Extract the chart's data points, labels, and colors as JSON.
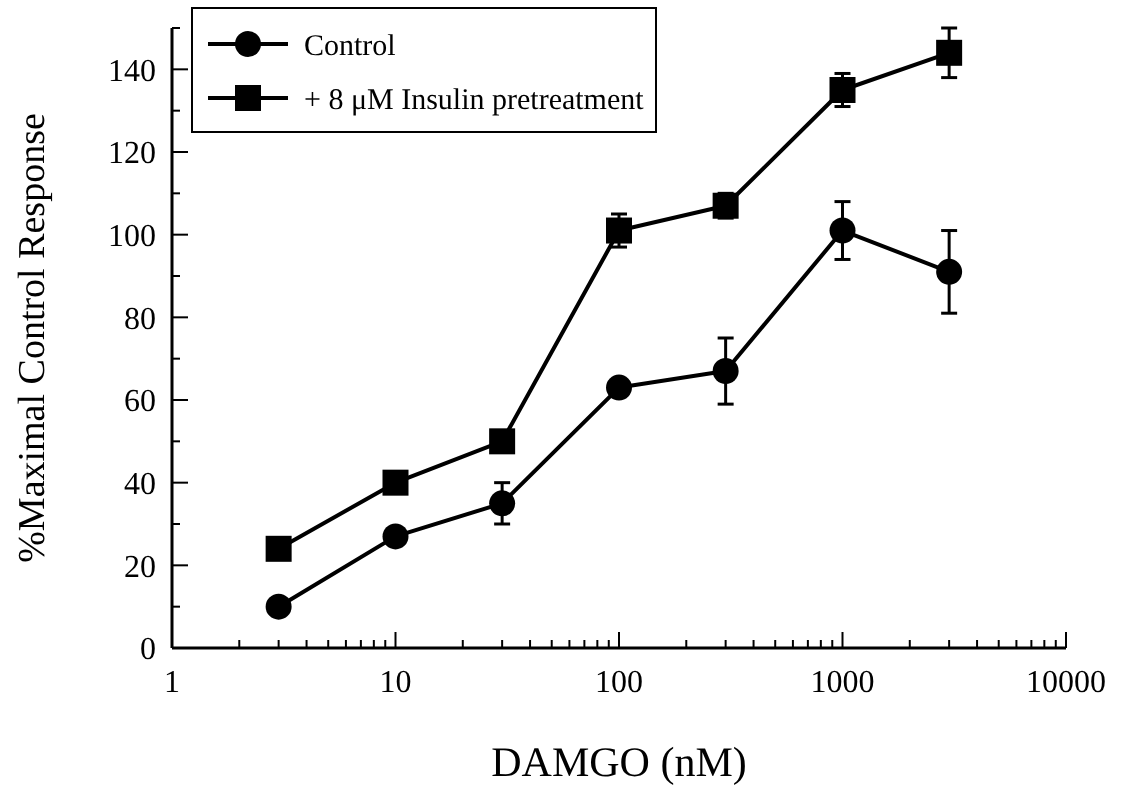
{
  "chart_data": {
    "type": "line",
    "xlabel": "DAMGO (nM)",
    "ylabel": "%Maximal Control Response",
    "log": "x",
    "xlim": [
      1,
      10000
    ],
    "ylim": [
      0,
      150
    ],
    "xticks": [
      1,
      {
        "value": 2,
        "label": null
      },
      {
        "value": 3,
        "label": null
      },
      {
        "value": 4,
        "label": null
      },
      {
        "value": 5,
        "label": null
      },
      {
        "value": 6,
        "label": null
      },
      {
        "value": 7,
        "label": null
      },
      {
        "value": 8,
        "label": null
      },
      {
        "value": 9,
        "label": null
      },
      10,
      {
        "value": 20,
        "label": null
      },
      {
        "value": 30,
        "label": null
      },
      {
        "value": 40,
        "label": null
      },
      {
        "value": 50,
        "label": null
      },
      {
        "value": 60,
        "label": null
      },
      {
        "value": 70,
        "label": null
      },
      {
        "value": 80,
        "label": null
      },
      {
        "value": 90,
        "label": null
      },
      100,
      {
        "value": 200,
        "label": null
      },
      {
        "value": 300,
        "label": null
      },
      {
        "value": 400,
        "label": null
      },
      {
        "value": 500,
        "label": null
      },
      {
        "value": 600,
        "label": null
      },
      {
        "value": 700,
        "label": null
      },
      {
        "value": 800,
        "label": null
      },
      {
        "value": 900,
        "label": null
      },
      1000,
      {
        "value": 2000,
        "label": null
      },
      {
        "value": 3000,
        "label": null
      },
      {
        "value": 4000,
        "label": null
      },
      {
        "value": 5000,
        "label": null
      },
      {
        "value": 6000,
        "label": null
      },
      {
        "value": 7000,
        "label": null
      },
      {
        "value": 8000,
        "label": null
      },
      {
        "value": 9000,
        "label": null
      },
      10000
    ],
    "yticks": [
      0,
      {
        "value": 10,
        "label": null
      },
      20,
      {
        "value": 30,
        "label": null
      },
      40,
      {
        "value": 50,
        "label": null
      },
      60,
      {
        "value": 70,
        "label": null
      },
      80,
      {
        "value": 90,
        "label": null
      },
      100,
      {
        "value": 110,
        "label": null
      },
      120,
      {
        "value": 130,
        "label": null
      },
      140,
      {
        "value": 150,
        "label": null
      }
    ],
    "x": [
      3,
      10,
      30,
      100,
      300,
      1000,
      3000
    ],
    "legend": "top left",
    "grid": false,
    "line_style": "solid",
    "series": [
      {
        "name": "Control",
        "color": "#000000",
        "marker": "circle",
        "values": [
          10,
          27,
          35,
          63,
          67,
          101,
          91
        ],
        "errors": [
          null,
          null,
          5,
          null,
          8,
          7,
          10
        ]
      },
      {
        "name": "+ 8 μM Insulin pretreatment",
        "color": "#000000",
        "marker": "square",
        "values": [
          24,
          40,
          50,
          101,
          107,
          135,
          144
        ],
        "errors": [
          null,
          null,
          null,
          4,
          3,
          4,
          6
        ]
      }
    ]
  }
}
